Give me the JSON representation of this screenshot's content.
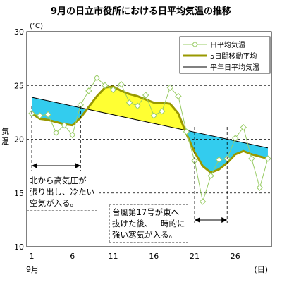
{
  "chart_data": {
    "type": "line",
    "title": "9月の日立市役所における日平均気温の推移",
    "ylabel": "気温",
    "yunit": "(℃)",
    "xunit": "(日)",
    "month_label": "9月",
    "ylim": [
      10,
      30
    ],
    "yticks": [
      10,
      15,
      20,
      25,
      30
    ],
    "xlim": [
      1,
      30
    ],
    "xticks": [
      1,
      6,
      11,
      16,
      21,
      26
    ],
    "grid": {
      "y": true,
      "x": false,
      "y_lines": [
        15,
        20,
        25
      ]
    },
    "legend_position": "top-right",
    "series": [
      {
        "name": "日平均気温",
        "color": "#99cc66",
        "marker": "diamond",
        "x": [
          1,
          2,
          3,
          4,
          5,
          6,
          7,
          8,
          9,
          10,
          11,
          12,
          13,
          14,
          15,
          16,
          17,
          18,
          19,
          20,
          21,
          22,
          23,
          24,
          25,
          26,
          27,
          28,
          29,
          30
        ],
        "values": [
          22.4,
          22.2,
          22.3,
          20.6,
          21.3,
          20.4,
          23.2,
          24.5,
          25.7,
          25.0,
          24.6,
          25.1,
          23.4,
          23.1,
          24.1,
          22.2,
          22.6,
          24.8,
          24.0,
          20.7,
          18.0,
          14.2,
          16.6,
          18.1,
          18.2,
          20.1,
          21.1,
          18.2,
          15.5,
          18.2
        ]
      },
      {
        "name": "5日間移動平均",
        "color": "#999900",
        "x": [
          1,
          2,
          3,
          4,
          5,
          6,
          7,
          8,
          9,
          10,
          11,
          12,
          13,
          14,
          15,
          16,
          17,
          18,
          19,
          20,
          21,
          22,
          23,
          24,
          25,
          26,
          27,
          28,
          29,
          30
        ],
        "values": [
          22.4,
          21.9,
          21.8,
          21.6,
          21.4,
          21.3,
          22.0,
          23.0,
          24.0,
          24.8,
          24.9,
          24.5,
          24.2,
          24.0,
          23.7,
          23.4,
          23.4,
          23.3,
          22.4,
          20.5,
          18.8,
          17.5,
          16.9,
          17.2,
          17.8,
          18.6,
          18.9,
          18.6,
          18.4,
          18.2
        ]
      },
      {
        "name": "平年日平均気温",
        "color": "#000000",
        "x": [
          1,
          30
        ],
        "values": [
          23.9,
          19.2
        ]
      }
    ],
    "fills": {
      "above_normal": "#ffff33",
      "below_normal": "#33ccee"
    },
    "annotations": [
      {
        "text": "北から高気圧が\n張り出し、冷たい\n空気が入る。",
        "from_x": 1,
        "to_x": 7
      },
      {
        "text": "台風第17号が東へ\n抜けた後、一時的に\n強い寒気が入る。",
        "from_x": 21,
        "to_x": 25
      }
    ]
  }
}
